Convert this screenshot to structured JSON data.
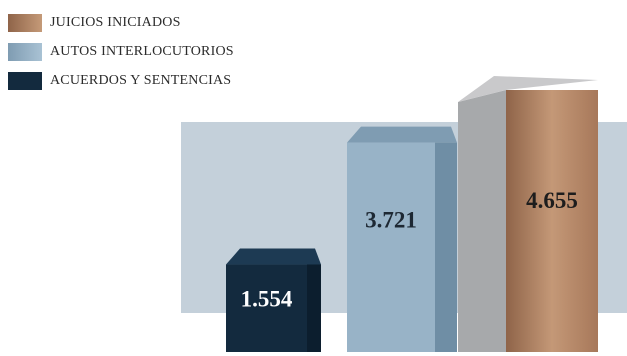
{
  "chart_data": {
    "type": "bar",
    "style": "3d",
    "categories": [
      "ACUERDOS Y SENTENCIAS",
      "AUTOS INTERLOCUTORIOS",
      "JUICIOS INICIADOS"
    ],
    "values": [
      1554,
      3721,
      4655
    ],
    "value_labels": [
      "1.554",
      "3.721",
      "4.655"
    ],
    "legend": [
      {
        "label": "JUICIOS INICIADOS",
        "color": "#b08262"
      },
      {
        "label": "AUTOS INTERLOCUTORIOS",
        "color": "#98b3c7"
      },
      {
        "label": "ACUERDOS Y SENTENCIAS",
        "color": "#132a3e"
      }
    ],
    "legend_position": "top-left",
    "grid": false,
    "ylim": [
      0,
      4655
    ]
  }
}
